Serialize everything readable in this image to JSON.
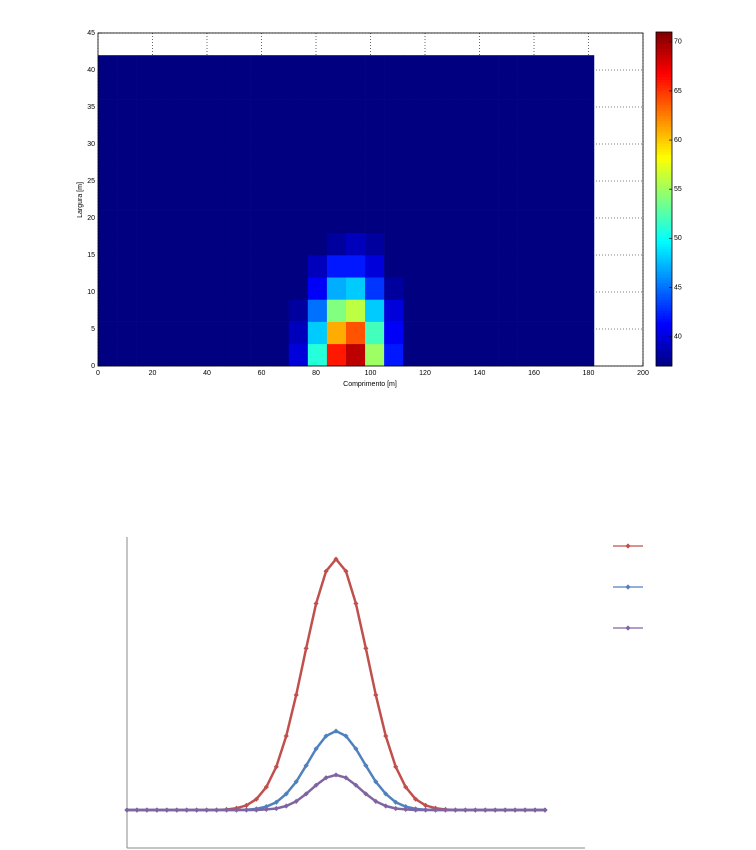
{
  "chart_data": [
    {
      "type": "heatmap",
      "xlabel": "Comprimento [m]",
      "ylabel": "Largura [m]",
      "x": [
        3.5,
        10.5,
        17.5,
        24.5,
        31.5,
        38.5,
        45.5,
        52.5,
        59.5,
        66.5,
        73.5,
        80.5,
        87.5,
        94.5,
        101.5,
        108.5,
        115.5,
        122.5,
        129.5,
        136.5,
        143.5,
        150.5,
        157.5,
        164.5,
        171.5,
        178.5
      ],
      "y": [
        1.5,
        4.5,
        7.5,
        10.5,
        13.5,
        16.5,
        19.5,
        22.5,
        25.5,
        28.5,
        31.5,
        34.5,
        37.5,
        40.5
      ],
      "z": [
        [
          37,
          37,
          37,
          37,
          37,
          37,
          37,
          37,
          37,
          37,
          40,
          51,
          66,
          69,
          55,
          42,
          37,
          37,
          37,
          37,
          37,
          37,
          37,
          37,
          37,
          37
        ],
        [
          37,
          37,
          37,
          37,
          37,
          37,
          37,
          37,
          37,
          37,
          39,
          48,
          61,
          64,
          52,
          41,
          37,
          37,
          37,
          37,
          37,
          37,
          37,
          37,
          37,
          37
        ],
        [
          37,
          37,
          37,
          37,
          37,
          37,
          37,
          37,
          37,
          37,
          38,
          45,
          54,
          56,
          48,
          40,
          37,
          37,
          37,
          37,
          37,
          37,
          37,
          37,
          37,
          37
        ],
        [
          37,
          37,
          37,
          37,
          37,
          37,
          37,
          37,
          37,
          37,
          37,
          41,
          47,
          48,
          43,
          38,
          37,
          37,
          37,
          37,
          37,
          37,
          37,
          37,
          37,
          37
        ],
        [
          37,
          37,
          37,
          37,
          37,
          37,
          37,
          37,
          37,
          37,
          37,
          39,
          42,
          42,
          40,
          37,
          37,
          37,
          37,
          37,
          37,
          37,
          37,
          37,
          37,
          37
        ],
        [
          37,
          37,
          37,
          37,
          37,
          37,
          37,
          37,
          37,
          37,
          37,
          37,
          38,
          39,
          38,
          37,
          37,
          37,
          37,
          37,
          37,
          37,
          37,
          37,
          37,
          37
        ],
        [
          37,
          37,
          37,
          37,
          37,
          37,
          37,
          37,
          37,
          37,
          37,
          37,
          37,
          37,
          37,
          37,
          37,
          37,
          37,
          37,
          37,
          37,
          37,
          37,
          37,
          37
        ],
        [
          37,
          37,
          37,
          37,
          37,
          37,
          37,
          37,
          37,
          37,
          37,
          37,
          37,
          37,
          37,
          37,
          37,
          37,
          37,
          37,
          37,
          37,
          37,
          37,
          37,
          37
        ],
        [
          37,
          37,
          37,
          37,
          37,
          37,
          37,
          37,
          37,
          37,
          37,
          37,
          37,
          37,
          37,
          37,
          37,
          37,
          37,
          37,
          37,
          37,
          37,
          37,
          37,
          37
        ],
        [
          37,
          37,
          37,
          37,
          37,
          37,
          37,
          37,
          37,
          37,
          37,
          37,
          37,
          37,
          37,
          37,
          37,
          37,
          37,
          37,
          37,
          37,
          37,
          37,
          37,
          37
        ],
        [
          37,
          37,
          37,
          37,
          37,
          37,
          37,
          37,
          37,
          37,
          37,
          37,
          37,
          37,
          37,
          37,
          37,
          37,
          37,
          37,
          37,
          37,
          37,
          37,
          37,
          37
        ],
        [
          37,
          37,
          37,
          37,
          37,
          37,
          37,
          37,
          37,
          37,
          37,
          37,
          37,
          37,
          37,
          37,
          37,
          37,
          37,
          37,
          37,
          37,
          37,
          37,
          37,
          37
        ],
        [
          37,
          37,
          37,
          37,
          37,
          37,
          37,
          37,
          37,
          37,
          37,
          37,
          37,
          37,
          37,
          37,
          37,
          37,
          37,
          37,
          37,
          37,
          37,
          37,
          37,
          37
        ],
        [
          37,
          37,
          37,
          37,
          37,
          37,
          37,
          37,
          37,
          37,
          37,
          37,
          37,
          37,
          37,
          37,
          37,
          37,
          37,
          37,
          37,
          37,
          37,
          37,
          37,
          37
        ]
      ],
      "xlim": [
        0,
        200
      ],
      "xticks": [
        0,
        20,
        40,
        60,
        80,
        100,
        120,
        140,
        160,
        180,
        200
      ],
      "ylim": [
        0,
        45
      ],
      "yticks": [
        0,
        5,
        10,
        15,
        20,
        25,
        30,
        35,
        40,
        45
      ],
      "grid": true,
      "colormap": "jet",
      "clim": [
        37,
        71
      ],
      "cticks": [
        40,
        45,
        50,
        55,
        60,
        65,
        70
      ]
    },
    {
      "type": "line",
      "ylim": [
        0,
        100
      ],
      "legend": "upper right",
      "series": [
        {
          "color": "#c0504d",
          "values": [
            12.2,
            12.2,
            12.2,
            12.2,
            12.2,
            12.2,
            12.2,
            12.2,
            12.2,
            12.2,
            12.4,
            12.8,
            13.7,
            15.7,
            19.6,
            26.1,
            36,
            49.2,
            64.2,
            78.6,
            89,
            92.9,
            89,
            78.6,
            64.2,
            49.2,
            36,
            26.1,
            19.6,
            15.7,
            13.7,
            12.8,
            12.4,
            12.2,
            12.2,
            12.2,
            12.2,
            12.2,
            12.2,
            12.2,
            12.2,
            12.2,
            12.2
          ]
        },
        {
          "color": "#4f81bd",
          "values": [
            12.2,
            12.2,
            12.2,
            12.2,
            12.2,
            12.2,
            12.2,
            12.2,
            12.2,
            12.2,
            12.2,
            12.2,
            12.3,
            12.6,
            13.3,
            14.7,
            17.4,
            21.3,
            26.5,
            31.9,
            36,
            37.6,
            36,
            31.9,
            26.5,
            21.3,
            17.4,
            14.7,
            13.3,
            12.6,
            12.3,
            12.2,
            12.2,
            12.2,
            12.2,
            12.2,
            12.2,
            12.2,
            12.2,
            12.2,
            12.2,
            12.2,
            12.2
          ]
        },
        {
          "color": "#8064a2",
          "values": [
            12.2,
            12.2,
            12.2,
            12.2,
            12.2,
            12.2,
            12.2,
            12.2,
            12.2,
            12.2,
            12.2,
            12.2,
            12.2,
            12.2,
            12.4,
            12.7,
            13.5,
            15,
            17.4,
            20.2,
            22.6,
            23.5,
            22.6,
            20.2,
            17.4,
            15,
            13.5,
            12.7,
            12.4,
            12.2,
            12.2,
            12.2,
            12.2,
            12.2,
            12.2,
            12.2,
            12.2,
            12.2,
            12.2,
            12.2,
            12.2,
            12.2,
            12.2
          ]
        }
      ]
    }
  ]
}
